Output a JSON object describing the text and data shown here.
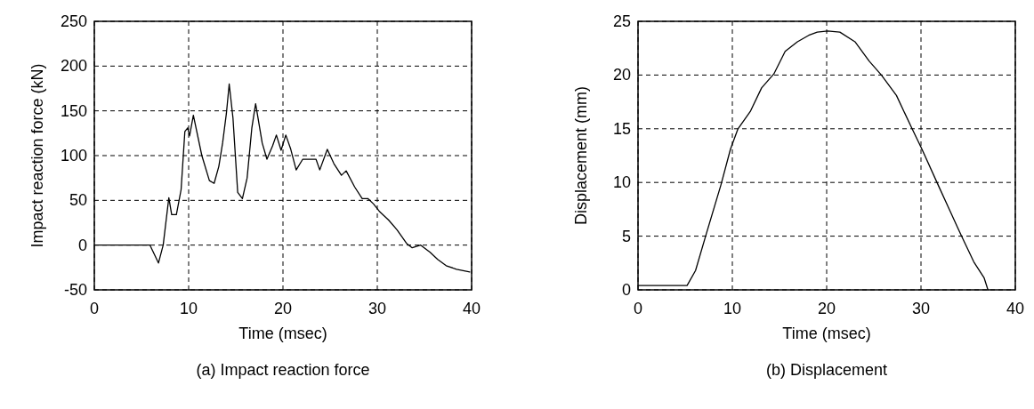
{
  "chart_data": [
    {
      "type": "line",
      "title": "(a) Impact reaction force",
      "xlabel": "Time (msec)",
      "ylabel": "Impact reaction force (kN)",
      "xlim": [
        0,
        40
      ],
      "xticks": [
        0,
        10,
        20,
        30,
        40
      ],
      "ylim": [
        -50,
        250
      ],
      "yticks": [
        -50,
        0,
        50,
        100,
        150,
        200,
        250
      ],
      "grid": true,
      "marker": "none",
      "line_style": "solid",
      "series": [
        {
          "color": "#000000",
          "x": [
            0,
            5.9,
            6.8,
            7.3,
            7.9,
            8.2,
            8.7,
            9.2,
            9.6,
            9.9,
            10.1,
            10.5,
            11.4,
            12.2,
            12.7,
            13.2,
            13.6,
            14.0,
            14.3,
            14.7,
            15.2,
            15.7,
            16.2,
            16.7,
            17.1,
            17.8,
            18.3,
            18.9,
            19.3,
            19.8,
            20.3,
            20.8,
            21.4,
            22.1,
            23.5,
            23.9,
            24.7,
            25.4,
            26.2,
            26.7,
            27.6,
            28.4,
            29.0,
            29.6,
            30.2,
            31.2,
            32.1,
            33.1,
            33.7,
            34.6,
            35.6,
            36.4,
            37.3,
            38.4,
            39.8
          ],
          "values": [
            0,
            0,
            -20,
            0,
            53,
            34,
            34,
            62,
            127,
            131,
            122,
            145,
            100,
            72,
            69,
            88,
            114,
            147,
            180,
            142,
            59,
            52,
            75,
            131,
            158,
            114,
            96,
            111,
            123,
            106,
            123,
            108,
            84,
            96,
            96,
            84,
            107,
            91,
            78,
            83,
            65,
            52,
            52,
            46,
            38,
            28,
            17,
            2,
            -3,
            0,
            -8,
            -16,
            -23,
            -27,
            -30
          ]
        }
      ]
    },
    {
      "type": "line",
      "title": "(b) Displacement",
      "xlabel": "Time (msec)",
      "ylabel": "Displacement (mm)",
      "xlim": [
        0,
        40
      ],
      "xticks": [
        0,
        10,
        20,
        30,
        40
      ],
      "ylim": [
        0,
        25
      ],
      "yticks": [
        0,
        5,
        10,
        15,
        20,
        25
      ],
      "grid": true,
      "marker": "none",
      "line_style": "solid",
      "series": [
        {
          "color": "#000000",
          "x": [
            0,
            5.2,
            6.1,
            7.2,
            8.8,
            9.8,
            10.6,
            11.9,
            13.1,
            14.4,
            15.6,
            16.9,
            18.1,
            19.0,
            20.1,
            21.4,
            23.0,
            24.5,
            25.8,
            27.4,
            29.0,
            30.1,
            31.8,
            33.1,
            34.3,
            35.6,
            36.7,
            37.1
          ],
          "values": [
            0.4,
            0.4,
            1.8,
            5.1,
            9.8,
            13.1,
            15,
            16.6,
            18.8,
            20.1,
            22.2,
            23.1,
            23.7,
            24.0,
            24.1,
            24.0,
            23.1,
            21.3,
            20.0,
            18.1,
            15.1,
            13.1,
            9.8,
            7.3,
            5.0,
            2.6,
            1.1,
            0
          ]
        }
      ]
    }
  ]
}
